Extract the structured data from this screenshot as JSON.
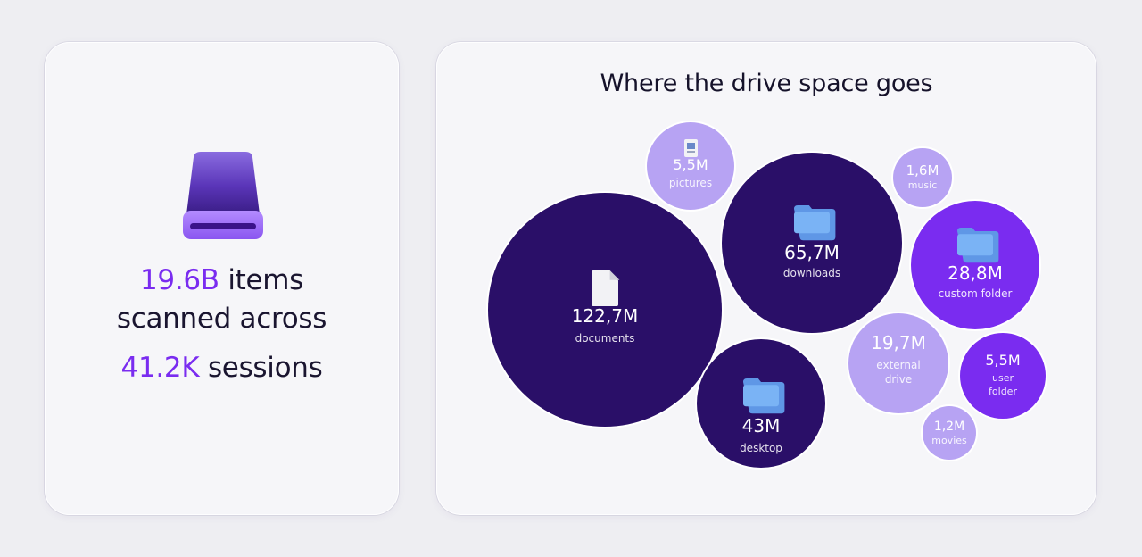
{
  "summary": {
    "items_value": "19.6B",
    "items_suffix": "items",
    "scanned_text": "scanned across",
    "sessions_value": "41.2K",
    "sessions_suffix": "sessions"
  },
  "colors": {
    "accent": "#7a2cf0",
    "dark_bubble": "#2a0f68",
    "mid_bubble": "#7a2cf0",
    "light_bubble": "#b7a3f3",
    "folder": "#7ab3f5"
  },
  "chart_data": {
    "type": "bubble",
    "title": "Where the drive space goes",
    "unit": "M",
    "series": [
      {
        "label": "documents",
        "value": 122.7,
        "display": "122,7M",
        "icon": "document-icon"
      },
      {
        "label": "downloads",
        "value": 65.7,
        "display": "65,7M",
        "icon": "folder-icon"
      },
      {
        "label": "desktop",
        "value": 43,
        "display": "43M",
        "icon": "folder-icon"
      },
      {
        "label": "custom folder",
        "value": 28.8,
        "display": "28,8M",
        "icon": "folder-icon"
      },
      {
        "label": "external drive",
        "value": 19.7,
        "display": "19,7M",
        "icon": ""
      },
      {
        "label": "pictures",
        "value": 5.5,
        "display": "5,5M",
        "icon": "image-file-icon"
      },
      {
        "label": "user folder",
        "value": 5.5,
        "display": "5,5M",
        "icon": ""
      },
      {
        "label": "music",
        "value": 1.6,
        "display": "1,6M",
        "icon": ""
      },
      {
        "label": "movies",
        "value": 1.2,
        "display": "1,2M",
        "icon": ""
      }
    ]
  }
}
